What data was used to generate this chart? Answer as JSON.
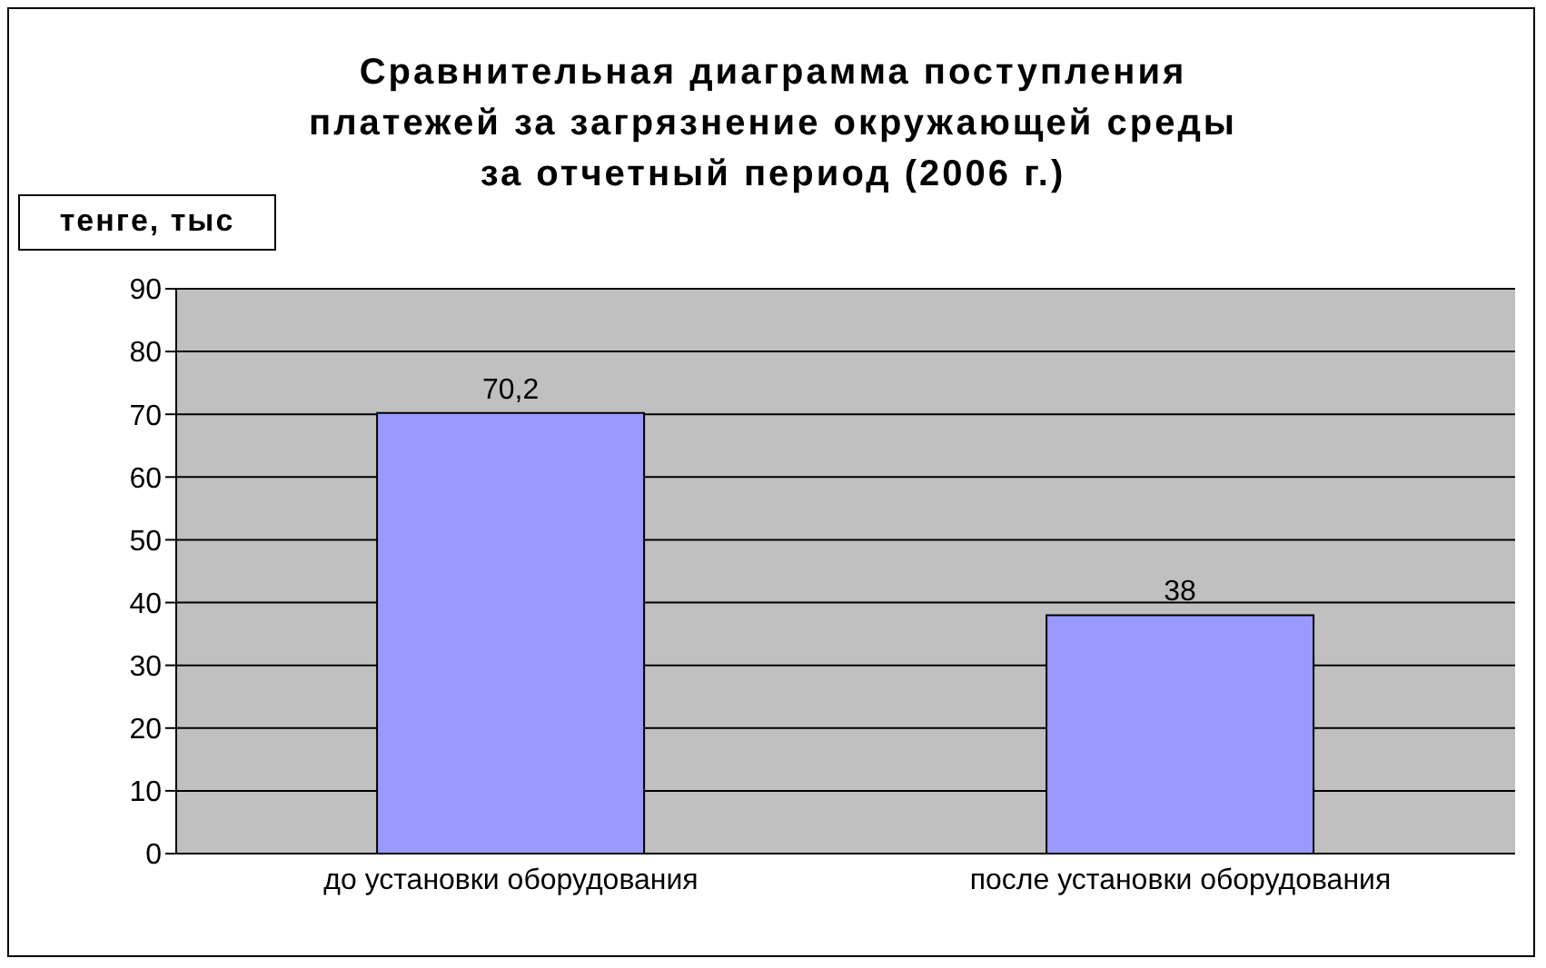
{
  "chart_data": {
    "type": "bar",
    "title": "Сравнительная диаграмма поступления\nплатежей за загрязнение окружающей среды\nза отчетный период (2006 г.)",
    "ylabel": "тенге, тыс",
    "categories": [
      "до установки оборудования",
      "после установки оборудования"
    ],
    "values": [
      70.2,
      38
    ],
    "value_labels": [
      "70,2",
      "38"
    ],
    "color": "#9999ff",
    "ylim": [
      0,
      90
    ],
    "yticks": [
      0,
      10,
      20,
      30,
      40,
      50,
      60,
      70,
      80,
      90
    ],
    "grid": "y"
  }
}
